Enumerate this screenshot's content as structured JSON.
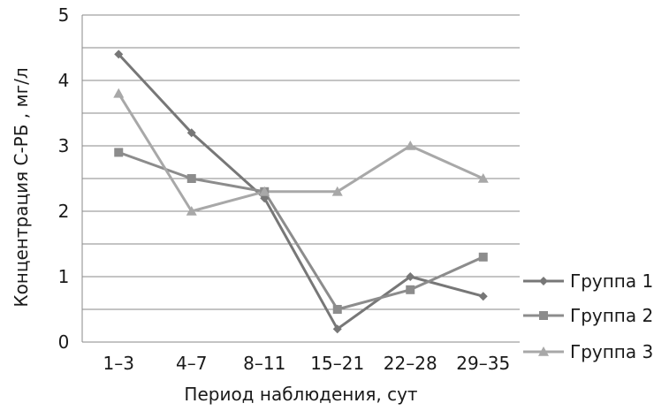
{
  "chart_data": {
    "type": "line",
    "title": "",
    "xlabel": "Период наблюдения, сут",
    "ylabel": "Концентрация С-РБ , мг/л",
    "categories": [
      "1–3",
      "4–7",
      "8–11",
      "15–21",
      "22–28",
      "29–35"
    ],
    "ylim": [
      0,
      5
    ],
    "yticks": [
      0,
      1,
      2,
      3,
      4,
      5
    ],
    "grid_step": 0.5,
    "grid": true,
    "legend_position": "right",
    "series": [
      {
        "name": "Группа 1",
        "marker": "diamond",
        "color": "#777777",
        "values": [
          4.4,
          3.2,
          2.2,
          0.2,
          1.0,
          0.7
        ]
      },
      {
        "name": "Группа 2",
        "marker": "square",
        "color": "#8c8c8c",
        "values": [
          2.9,
          2.5,
          2.3,
          0.5,
          0.8,
          1.3
        ]
      },
      {
        "name": "Группа 3",
        "marker": "triangle",
        "color": "#a8a8a8",
        "values": [
          3.8,
          2.0,
          2.3,
          2.3,
          3.0,
          2.5
        ]
      }
    ]
  }
}
